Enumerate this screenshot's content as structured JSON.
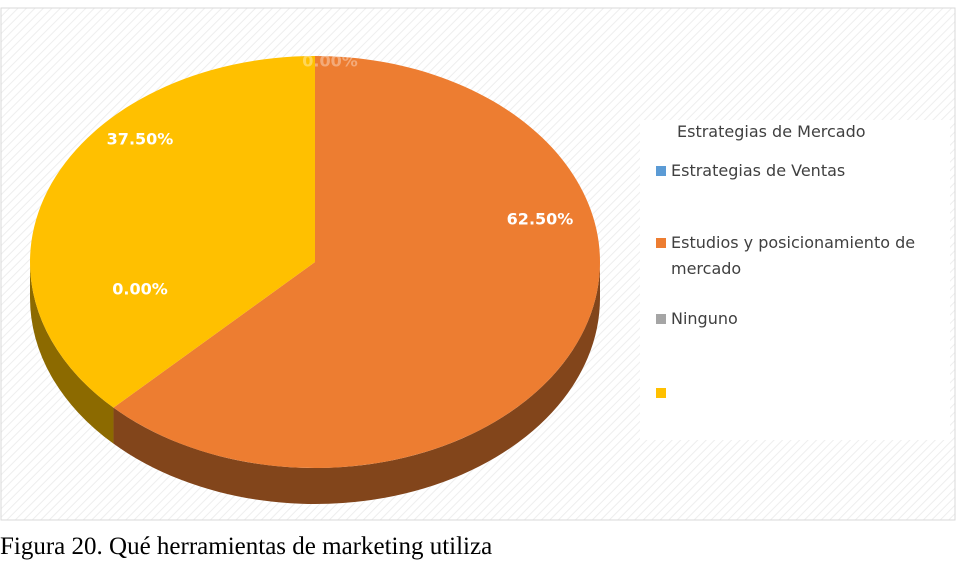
{
  "chart_data": {
    "type": "pie",
    "legend_title": "Estrategias de Mercado",
    "categories": [
      "Estrategias de Ventas",
      "Estudios y posicionamiento de mercado",
      "Ninguno",
      null
    ],
    "values": [
      0,
      62.5,
      0,
      37.5
    ],
    "value_labels": [
      "0.00%",
      "62.50%",
      "0.00%",
      "37.50%"
    ],
    "colors": [
      "#5b9bd5",
      "#ed7d31",
      "#a5a5a5",
      "#ffc000"
    ],
    "legend": "right",
    "caption": "Figura 20. Qué herramientas de marketing utiliza"
  }
}
